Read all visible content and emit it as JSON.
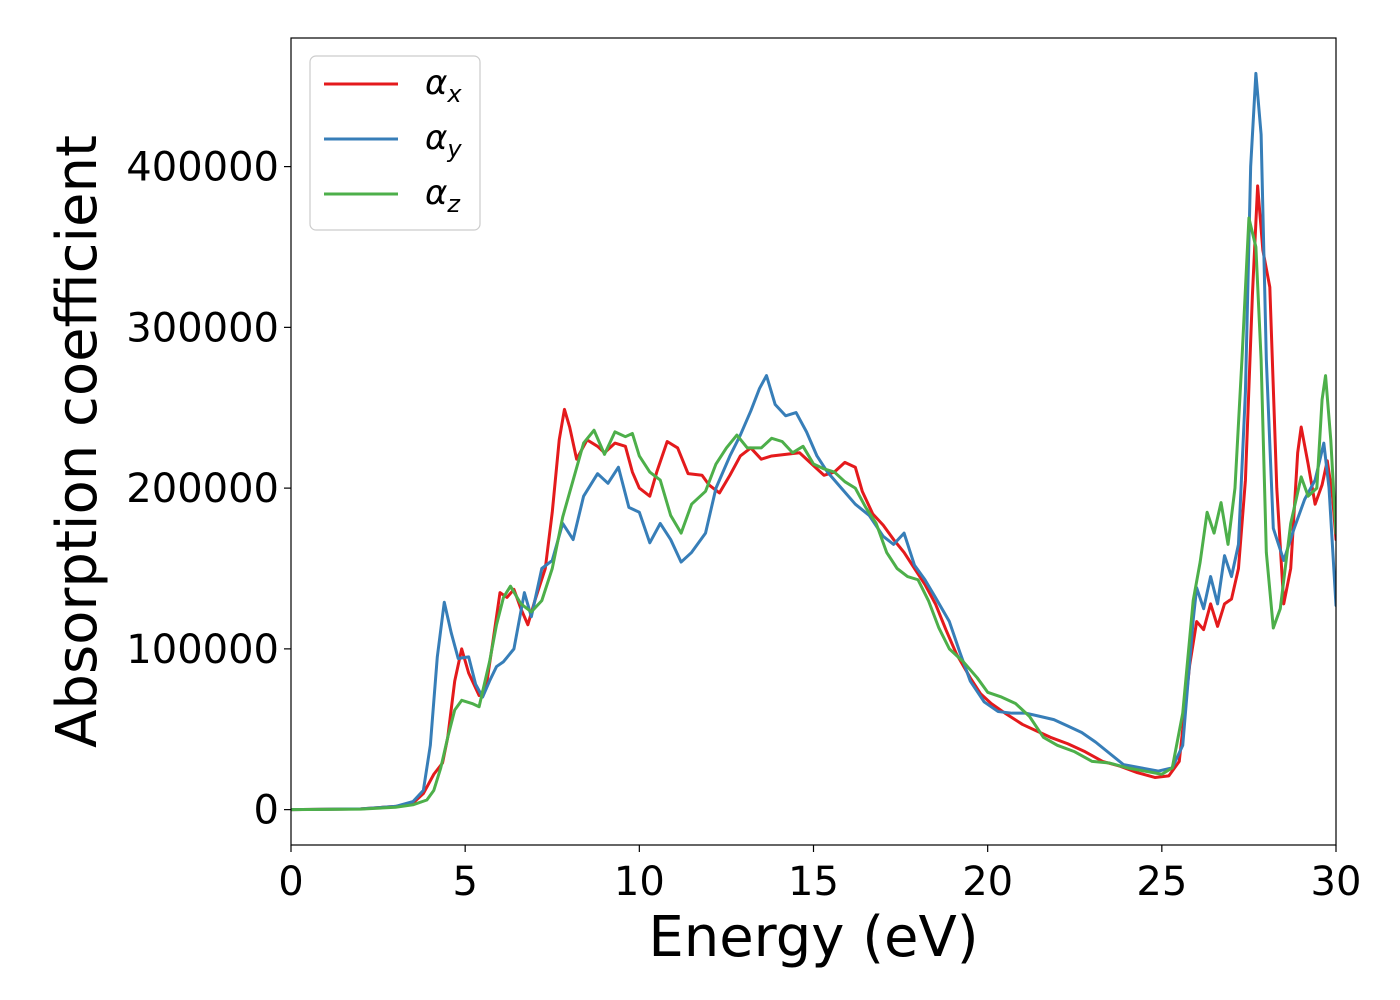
{
  "chart_data": {
    "type": "line",
    "title": "",
    "xlabel": "Energy (eV)",
    "ylabel": "Absorption coefficient",
    "xlim": [
      0,
      30
    ],
    "ylim": [
      -22000,
      480000
    ],
    "xticks": [
      0,
      5,
      10,
      15,
      20,
      25,
      30
    ],
    "yticks": [
      0,
      100000,
      200000,
      300000,
      400000
    ],
    "grid": false,
    "legend_position": "top-left",
    "series": [
      {
        "name": "αx",
        "legend_base": "α",
        "legend_sub": "x",
        "color": "#e41a1c",
        "points": [
          [
            0,
            0
          ],
          [
            2,
            500
          ],
          [
            3,
            2000
          ],
          [
            3.5,
            4000
          ],
          [
            3.8,
            10000
          ],
          [
            4.1,
            22000
          ],
          [
            4.35,
            29000
          ],
          [
            4.5,
            45000
          ],
          [
            4.7,
            80000
          ],
          [
            4.9,
            100000
          ],
          [
            5.1,
            85000
          ],
          [
            5.4,
            71000
          ],
          [
            5.6,
            76000
          ],
          [
            5.8,
            105000
          ],
          [
            6.0,
            135000
          ],
          [
            6.2,
            132000
          ],
          [
            6.4,
            137000
          ],
          [
            6.6,
            125000
          ],
          [
            6.8,
            115000
          ],
          [
            7.0,
            130000
          ],
          [
            7.3,
            150000
          ],
          [
            7.5,
            185000
          ],
          [
            7.7,
            230000
          ],
          [
            7.85,
            249000
          ],
          [
            8.0,
            238000
          ],
          [
            8.2,
            218000
          ],
          [
            8.5,
            230000
          ],
          [
            8.8,
            226000
          ],
          [
            9.0,
            222000
          ],
          [
            9.3,
            228000
          ],
          [
            9.6,
            226000
          ],
          [
            9.8,
            210000
          ],
          [
            10.0,
            200000
          ],
          [
            10.3,
            195000
          ],
          [
            10.5,
            210000
          ],
          [
            10.8,
            229000
          ],
          [
            11.1,
            225000
          ],
          [
            11.4,
            209000
          ],
          [
            11.8,
            208000
          ],
          [
            12.0,
            202000
          ],
          [
            12.3,
            197000
          ],
          [
            12.6,
            208000
          ],
          [
            12.9,
            220000
          ],
          [
            13.2,
            225000
          ],
          [
            13.5,
            218000
          ],
          [
            13.8,
            220000
          ],
          [
            14.2,
            221000
          ],
          [
            14.6,
            222000
          ],
          [
            15.0,
            214000
          ],
          [
            15.3,
            208000
          ],
          [
            15.6,
            210000
          ],
          [
            15.9,
            216000
          ],
          [
            16.2,
            213000
          ],
          [
            16.4,
            198000
          ],
          [
            16.7,
            184000
          ],
          [
            17.0,
            177000
          ],
          [
            17.3,
            168000
          ],
          [
            17.6,
            160000
          ],
          [
            17.9,
            150000
          ],
          [
            18.2,
            140000
          ],
          [
            18.5,
            128000
          ],
          [
            18.8,
            112000
          ],
          [
            19.1,
            97000
          ],
          [
            19.5,
            82000
          ],
          [
            19.8,
            72000
          ],
          [
            20.1,
            66000
          ],
          [
            20.5,
            60000
          ],
          [
            21.0,
            53000
          ],
          [
            21.4,
            49000
          ],
          [
            21.8,
            45000
          ],
          [
            22.3,
            41000
          ],
          [
            22.8,
            36000
          ],
          [
            23.3,
            30000
          ],
          [
            23.8,
            27000
          ],
          [
            24.3,
            23000
          ],
          [
            24.8,
            20000
          ],
          [
            25.2,
            21000
          ],
          [
            25.5,
            30000
          ],
          [
            25.8,
            90000
          ],
          [
            26.0,
            117000
          ],
          [
            26.2,
            112000
          ],
          [
            26.4,
            128000
          ],
          [
            26.6,
            114000
          ],
          [
            26.8,
            128000
          ],
          [
            27.0,
            131000
          ],
          [
            27.2,
            150000
          ],
          [
            27.4,
            205000
          ],
          [
            27.6,
            320000
          ],
          [
            27.75,
            388000
          ],
          [
            27.9,
            348000
          ],
          [
            28.1,
            325000
          ],
          [
            28.3,
            200000
          ],
          [
            28.5,
            128000
          ],
          [
            28.7,
            150000
          ],
          [
            28.9,
            222000
          ],
          [
            29.0,
            238000
          ],
          [
            29.2,
            215000
          ],
          [
            29.4,
            190000
          ],
          [
            29.6,
            202000
          ],
          [
            29.75,
            217000
          ],
          [
            29.9,
            195000
          ],
          [
            30,
            168000
          ]
        ]
      },
      {
        "name": "αy",
        "legend_base": "α",
        "legend_sub": "y",
        "color": "#377eb8",
        "points": [
          [
            0,
            0
          ],
          [
            2,
            500
          ],
          [
            3,
            2000
          ],
          [
            3.5,
            5000
          ],
          [
            3.8,
            12000
          ],
          [
            4.0,
            40000
          ],
          [
            4.2,
            95000
          ],
          [
            4.4,
            129000
          ],
          [
            4.6,
            110000
          ],
          [
            4.8,
            94000
          ],
          [
            5.1,
            95000
          ],
          [
            5.3,
            78000
          ],
          [
            5.5,
            70000
          ],
          [
            5.7,
            80000
          ],
          [
            5.9,
            89000
          ],
          [
            6.1,
            92000
          ],
          [
            6.4,
            100000
          ],
          [
            6.7,
            135000
          ],
          [
            6.9,
            120000
          ],
          [
            7.2,
            150000
          ],
          [
            7.5,
            155000
          ],
          [
            7.8,
            178000
          ],
          [
            8.1,
            168000
          ],
          [
            8.4,
            195000
          ],
          [
            8.8,
            209000
          ],
          [
            9.1,
            203000
          ],
          [
            9.4,
            213000
          ],
          [
            9.7,
            188000
          ],
          [
            10.0,
            185000
          ],
          [
            10.3,
            166000
          ],
          [
            10.6,
            178000
          ],
          [
            10.9,
            168000
          ],
          [
            11.2,
            154000
          ],
          [
            11.5,
            160000
          ],
          [
            11.9,
            172000
          ],
          [
            12.2,
            200000
          ],
          [
            12.6,
            220000
          ],
          [
            12.9,
            233000
          ],
          [
            13.2,
            248000
          ],
          [
            13.45,
            262000
          ],
          [
            13.65,
            270000
          ],
          [
            13.9,
            252000
          ],
          [
            14.2,
            245000
          ],
          [
            14.5,
            247000
          ],
          [
            14.8,
            235000
          ],
          [
            15.1,
            220000
          ],
          [
            15.4,
            210000
          ],
          [
            15.8,
            200000
          ],
          [
            16.2,
            190000
          ],
          [
            16.6,
            183000
          ],
          [
            17.0,
            170000
          ],
          [
            17.3,
            165000
          ],
          [
            17.6,
            172000
          ],
          [
            17.9,
            152000
          ],
          [
            18.2,
            143000
          ],
          [
            18.5,
            132000
          ],
          [
            18.9,
            117000
          ],
          [
            19.2,
            98000
          ],
          [
            19.5,
            80000
          ],
          [
            19.9,
            67000
          ],
          [
            20.3,
            61000
          ],
          [
            20.7,
            60000
          ],
          [
            21.1,
            60000
          ],
          [
            21.5,
            58000
          ],
          [
            21.9,
            56000
          ],
          [
            22.3,
            52000
          ],
          [
            22.7,
            48000
          ],
          [
            23.1,
            42000
          ],
          [
            23.5,
            35000
          ],
          [
            23.9,
            28000
          ],
          [
            24.4,
            26000
          ],
          [
            24.9,
            24000
          ],
          [
            25.3,
            26000
          ],
          [
            25.6,
            40000
          ],
          [
            25.9,
            118000
          ],
          [
            26.0,
            138000
          ],
          [
            26.2,
            125000
          ],
          [
            26.4,
            145000
          ],
          [
            26.6,
            128000
          ],
          [
            26.8,
            158000
          ],
          [
            27.0,
            145000
          ],
          [
            27.2,
            165000
          ],
          [
            27.4,
            260000
          ],
          [
            27.55,
            400000
          ],
          [
            27.7,
            458000
          ],
          [
            27.85,
            420000
          ],
          [
            28.0,
            280000
          ],
          [
            28.2,
            175000
          ],
          [
            28.5,
            155000
          ],
          [
            28.8,
            175000
          ],
          [
            29.1,
            193000
          ],
          [
            29.4,
            205000
          ],
          [
            29.65,
            228000
          ],
          [
            29.8,
            200000
          ],
          [
            30,
            127000
          ]
        ]
      },
      {
        "name": "αz",
        "legend_base": "α",
        "legend_sub": "z",
        "color": "#4daf4a",
        "points": [
          [
            0,
            0
          ],
          [
            2,
            300
          ],
          [
            3,
            1500
          ],
          [
            3.5,
            3000
          ],
          [
            3.9,
            6000
          ],
          [
            4.1,
            12000
          ],
          [
            4.3,
            26000
          ],
          [
            4.5,
            45000
          ],
          [
            4.7,
            62000
          ],
          [
            4.9,
            68000
          ],
          [
            5.2,
            66000
          ],
          [
            5.4,
            64000
          ],
          [
            5.7,
            92000
          ],
          [
            5.9,
            115000
          ],
          [
            6.1,
            132000
          ],
          [
            6.3,
            139000
          ],
          [
            6.6,
            128000
          ],
          [
            6.9,
            123000
          ],
          [
            7.2,
            130000
          ],
          [
            7.5,
            150000
          ],
          [
            7.8,
            182000
          ],
          [
            8.1,
            205000
          ],
          [
            8.4,
            228000
          ],
          [
            8.7,
            236000
          ],
          [
            9.0,
            221000
          ],
          [
            9.3,
            235000
          ],
          [
            9.6,
            232000
          ],
          [
            9.8,
            234000
          ],
          [
            10.0,
            220000
          ],
          [
            10.3,
            210000
          ],
          [
            10.6,
            205000
          ],
          [
            10.9,
            183000
          ],
          [
            11.2,
            172000
          ],
          [
            11.5,
            190000
          ],
          [
            11.9,
            198000
          ],
          [
            12.2,
            215000
          ],
          [
            12.5,
            225000
          ],
          [
            12.8,
            233000
          ],
          [
            13.1,
            225000
          ],
          [
            13.5,
            225000
          ],
          [
            13.8,
            231000
          ],
          [
            14.1,
            229000
          ],
          [
            14.4,
            222000
          ],
          [
            14.7,
            226000
          ],
          [
            15.0,
            215000
          ],
          [
            15.3,
            212000
          ],
          [
            15.6,
            210000
          ],
          [
            15.9,
            204000
          ],
          [
            16.2,
            200000
          ],
          [
            16.5,
            188000
          ],
          [
            16.8,
            178000
          ],
          [
            17.1,
            160000
          ],
          [
            17.4,
            150000
          ],
          [
            17.7,
            145000
          ],
          [
            18.0,
            143000
          ],
          [
            18.3,
            130000
          ],
          [
            18.6,
            113000
          ],
          [
            18.9,
            100000
          ],
          [
            19.3,
            92000
          ],
          [
            19.7,
            82000
          ],
          [
            20.0,
            73000
          ],
          [
            20.4,
            70000
          ],
          [
            20.8,
            66000
          ],
          [
            21.2,
            58000
          ],
          [
            21.6,
            45000
          ],
          [
            22.0,
            40000
          ],
          [
            22.5,
            36000
          ],
          [
            23.0,
            30000
          ],
          [
            23.5,
            29000
          ],
          [
            24.0,
            26000
          ],
          [
            24.5,
            24000
          ],
          [
            25.0,
            22000
          ],
          [
            25.3,
            26000
          ],
          [
            25.6,
            60000
          ],
          [
            25.9,
            130000
          ],
          [
            26.1,
            154000
          ],
          [
            26.3,
            185000
          ],
          [
            26.5,
            172000
          ],
          [
            26.7,
            191000
          ],
          [
            26.9,
            165000
          ],
          [
            27.1,
            200000
          ],
          [
            27.3,
            280000
          ],
          [
            27.5,
            368000
          ],
          [
            27.7,
            350000
          ],
          [
            27.85,
            280000
          ],
          [
            28.0,
            160000
          ],
          [
            28.2,
            113000
          ],
          [
            28.4,
            125000
          ],
          [
            28.7,
            178000
          ],
          [
            29.0,
            207000
          ],
          [
            29.2,
            195000
          ],
          [
            29.45,
            200000
          ],
          [
            29.6,
            255000
          ],
          [
            29.7,
            270000
          ],
          [
            29.85,
            230000
          ],
          [
            30,
            172000
          ]
        ]
      }
    ]
  }
}
